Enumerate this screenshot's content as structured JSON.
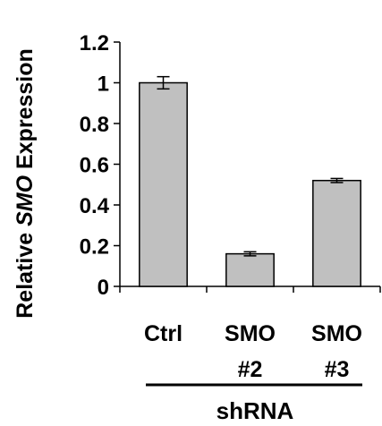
{
  "chart_data": {
    "type": "bar",
    "categories": [
      {
        "line1": "Ctrl",
        "line2": ""
      },
      {
        "line1": "SMO",
        "line2": "#2"
      },
      {
        "line1": "SMO",
        "line2": "#3"
      }
    ],
    "values": [
      1.0,
      0.16,
      0.52
    ],
    "errors": [
      0.03,
      0.01,
      0.01
    ],
    "ylabel": {
      "prefix": "Relative ",
      "italic": "SMO",
      "suffix": " Expression"
    },
    "group_label": "shRNA",
    "yticks": [
      "0",
      "0.2",
      "0.4",
      "0.6",
      "0.8",
      "1",
      "1.2"
    ],
    "ylim": [
      0,
      1.2
    ],
    "grid": false,
    "legend": "none",
    "bar_color": "#c0c0c0",
    "edge_color": "#000000"
  }
}
